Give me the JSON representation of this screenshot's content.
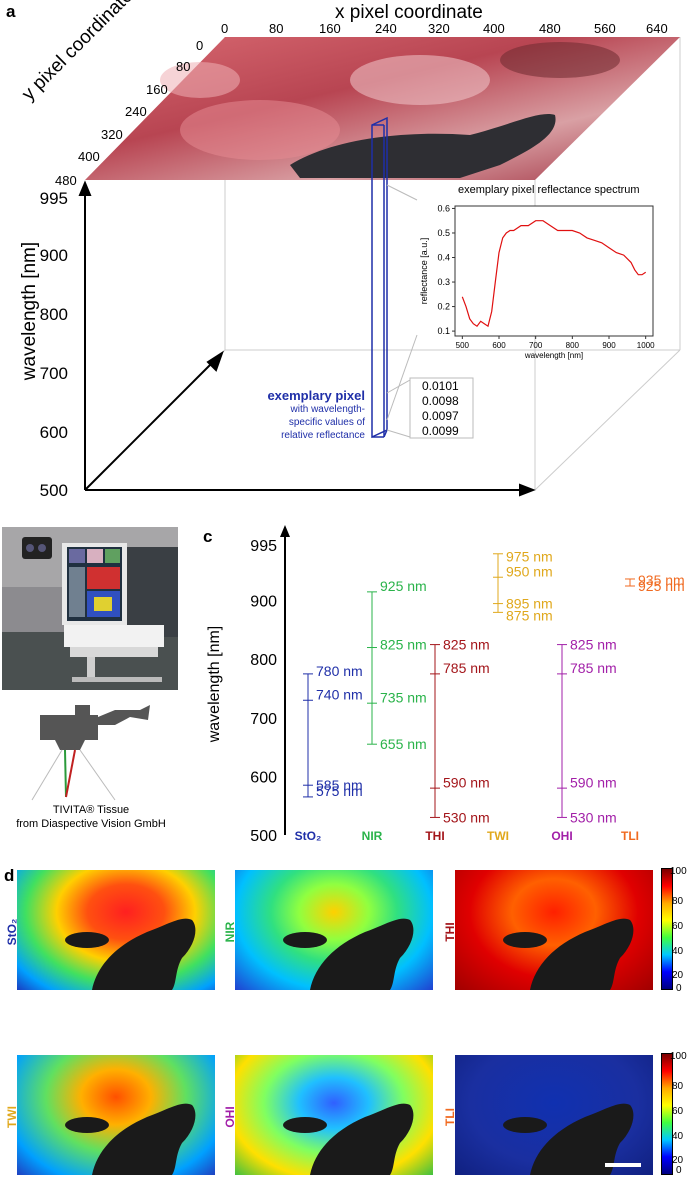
{
  "panel_a": {
    "letter": "a",
    "x_axis_label": "x pixel coordinate",
    "x_ticks": [
      "0",
      "80",
      "160",
      "240",
      "320",
      "400",
      "480",
      "560",
      "640"
    ],
    "y_axis_label": "y pixel coordinate",
    "y_ticks": [
      "0",
      "80",
      "160",
      "240",
      "320",
      "400",
      "480"
    ],
    "z_axis_label": "wavelength [nm]",
    "z_ticks": [
      "995",
      "900",
      "800",
      "700",
      "600",
      "500"
    ],
    "exemplary_title": "exemplary pixel",
    "exemplary_desc": [
      "with wavelength-",
      "specific values of",
      "relative reflectance"
    ],
    "values": [
      "0.0101",
      "0.0098",
      "0.0097",
      "0.0099"
    ],
    "colors": {
      "pixel": "#1f2fa8",
      "spectrum": "#e01010"
    }
  },
  "chart_data": {
    "type": "line",
    "title": "exemplary pixel reflectance spectrum",
    "xlabel": "wavelength [nm]",
    "ylabel": "reflectance [a.u.]",
    "xlim": [
      480,
      1020
    ],
    "ylim": [
      0.08,
      0.61
    ],
    "x_ticks": [
      "500",
      "600",
      "700",
      "800",
      "900",
      "1000"
    ],
    "y_ticks": [
      "0.1",
      "0.2",
      "0.3",
      "0.4",
      "0.5",
      "0.6"
    ],
    "x": [
      500,
      510,
      520,
      530,
      540,
      550,
      560,
      570,
      580,
      590,
      600,
      610,
      620,
      630,
      640,
      660,
      680,
      700,
      720,
      740,
      760,
      780,
      800,
      820,
      840,
      860,
      880,
      900,
      920,
      940,
      960,
      970,
      980,
      990,
      1000
    ],
    "y": [
      0.24,
      0.2,
      0.15,
      0.13,
      0.12,
      0.14,
      0.13,
      0.12,
      0.18,
      0.3,
      0.42,
      0.48,
      0.5,
      0.51,
      0.51,
      0.53,
      0.53,
      0.55,
      0.55,
      0.53,
      0.51,
      0.51,
      0.51,
      0.5,
      0.48,
      0.47,
      0.46,
      0.44,
      0.42,
      0.41,
      0.38,
      0.35,
      0.33,
      0.33,
      0.34
    ]
  },
  "panel_b": {
    "letter": "b",
    "caption_line1": "TIVITA® Tissue",
    "caption_line2": "from Diaspective Vision GmbH"
  },
  "panel_c": {
    "letter": "c",
    "ylabel": "wavelength [nm]",
    "y_ticks": [
      995,
      900,
      800,
      700,
      600,
      500
    ],
    "categories": [
      {
        "name": "StO₂",
        "color": "#1f2fa8",
        "segments": [
          [
            565,
            775
          ]
        ],
        "values": [
          {
            "v": 780,
            "label": "780 nm"
          },
          {
            "v": 740,
            "label": "740 nm"
          },
          {
            "v": 585,
            "label": "585 nm"
          },
          {
            "v": 575,
            "label": "575 nm"
          }
        ],
        "ticks": [
          775,
          730,
          585,
          565
        ]
      },
      {
        "name": "NIR",
        "color": "#2ab34a",
        "segments": [
          [
            655,
            915
          ]
        ],
        "values": [
          {
            "v": 925,
            "label": "925 nm"
          },
          {
            "v": 825,
            "label": "825 nm"
          },
          {
            "v": 735,
            "label": "735 nm"
          },
          {
            "v": 655,
            "label": "655 nm"
          }
        ],
        "ticks": [
          915,
          820,
          725,
          655
        ]
      },
      {
        "name": "THI",
        "color": "#a3151a",
        "segments": [
          [
            530,
            825
          ]
        ],
        "values": [
          {
            "v": 825,
            "label": "825 nm"
          },
          {
            "v": 785,
            "label": "785 nm"
          },
          {
            "v": 590,
            "label": "590 nm"
          },
          {
            "v": 530,
            "label": "530 nm"
          }
        ],
        "ticks": [
          825,
          775,
          580,
          530
        ]
      },
      {
        "name": "TWI",
        "color": "#e0a81c",
        "segments": [
          [
            880,
            980
          ]
        ],
        "values": [
          {
            "v": 975,
            "label": "975 nm"
          },
          {
            "v": 950,
            "label": "950 nm"
          },
          {
            "v": 895,
            "label": "895 nm"
          },
          {
            "v": 875,
            "label": "875 nm"
          }
        ],
        "ticks": [
          980,
          940,
          895,
          880
        ]
      },
      {
        "name": "OHI",
        "color": "#a21fa8",
        "segments": [
          [
            530,
            825
          ]
        ],
        "values": [
          {
            "v": 825,
            "label": "825 nm"
          },
          {
            "v": 785,
            "label": "785 nm"
          },
          {
            "v": 590,
            "label": "590 nm"
          },
          {
            "v": 530,
            "label": "530 nm"
          }
        ],
        "ticks": [
          825,
          775,
          580,
          530
        ]
      },
      {
        "name": "TLI",
        "color": "#f06a20",
        "segments": [
          [
            925,
            937
          ]
        ],
        "values": [
          {
            "v": 935,
            "label": "935 nm"
          },
          {
            "v": 925,
            "label": "925 nm"
          }
        ],
        "ticks": [
          937,
          925
        ]
      }
    ]
  },
  "panel_d": {
    "letter": "d",
    "maps": [
      {
        "label": "StO₂",
        "color": "#1f2fa8"
      },
      {
        "label": "NIR",
        "color": "#2ab34a"
      },
      {
        "label": "THI",
        "color": "#a3151a"
      },
      {
        "label": "TWI",
        "color": "#e0a81c"
      },
      {
        "label": "OHI",
        "color": "#a21fa8"
      },
      {
        "label": "TLI",
        "color": "#f06a20"
      }
    ],
    "colorbar_ticks": [
      "100",
      "80",
      "60",
      "40",
      "20",
      "0"
    ]
  }
}
